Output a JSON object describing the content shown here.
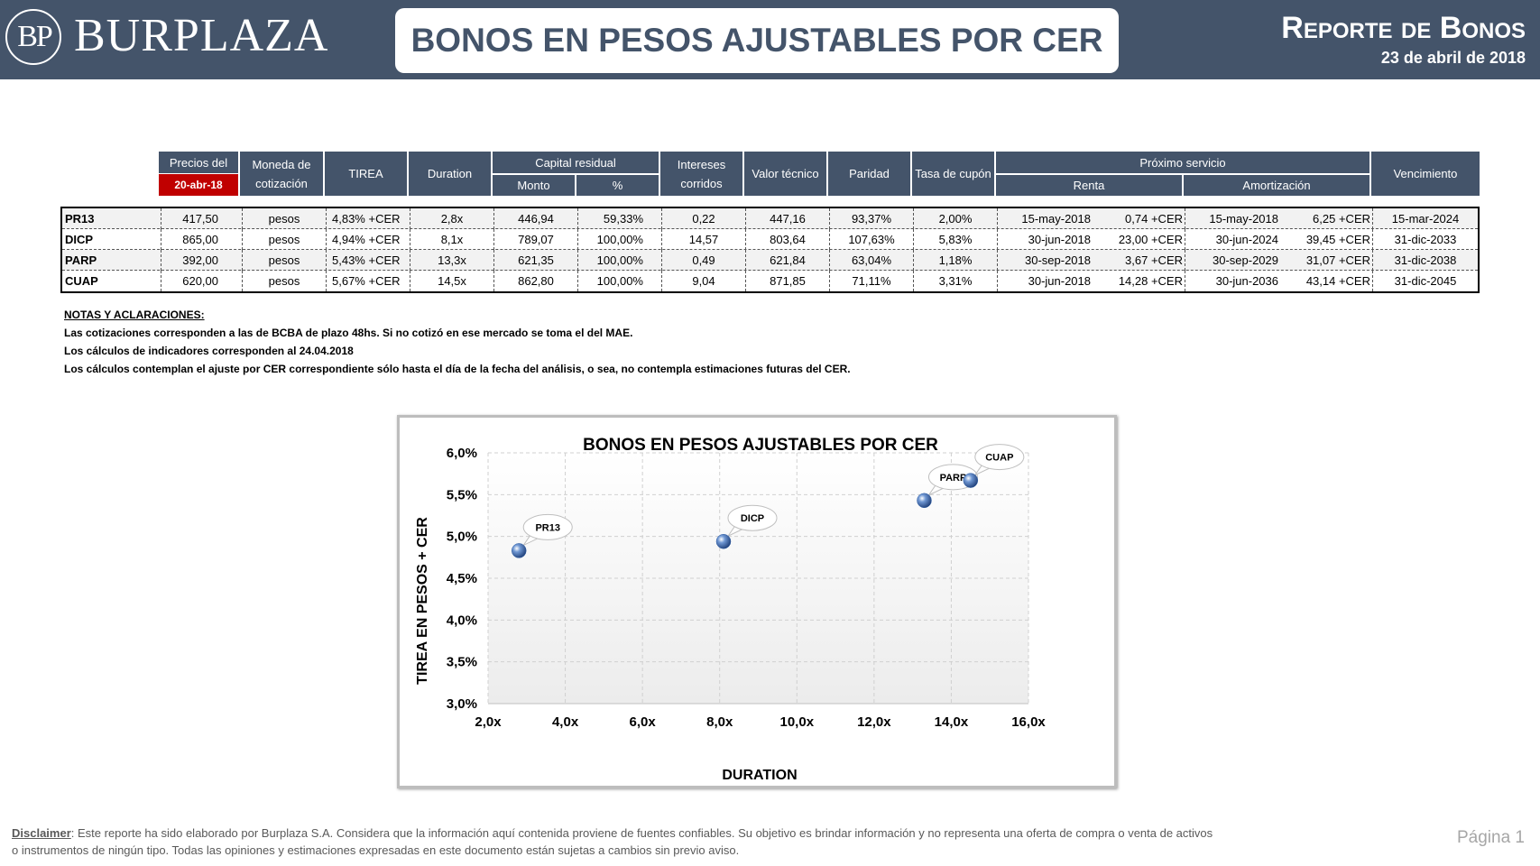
{
  "header": {
    "logo_initials": "BP",
    "logo_name": "BURPLAZA",
    "title": "BONOS EN PESOS AJUSTABLES POR CER",
    "report_title": "Reporte de Bonos",
    "report_date": "23 de abril de 2018"
  },
  "table": {
    "headers": {
      "precios": "Precios del",
      "precios_date": "20-abr-18",
      "moneda": "Moneda de cotización",
      "tirea": "TIREA",
      "duration": "Duration",
      "capital_residual": "Capital residual",
      "monto": "Monto",
      "pct": "%",
      "intereses": "Intereses corridos",
      "valor_tecnico": "Valor técnico",
      "paridad": "Paridad",
      "tasa": "Tasa de cupón",
      "proximo": "Próximo servicio",
      "renta": "Renta",
      "amortizacion": "Amortización",
      "vencimiento": "Vencimiento"
    },
    "rows": [
      [
        "PR13",
        "417,50",
        "pesos",
        "4,83% +CER",
        "2,8x",
        "446,94",
        "59,33%",
        "0,22",
        "447,16",
        "93,37%",
        "2,00%",
        "15-may-2018",
        "0,74 +CER",
        "15-may-2018",
        "6,25 +CER",
        "15-mar-2024"
      ],
      [
        "DICP",
        "865,00",
        "pesos",
        "4,94% +CER",
        "8,1x",
        "789,07",
        "100,00%",
        "14,57",
        "803,64",
        "107,63%",
        "5,83%",
        "30-jun-2018",
        "23,00 +CER",
        "30-jun-2024",
        "39,45 +CER",
        "31-dic-2033"
      ],
      [
        "PARP",
        "392,00",
        "pesos",
        "5,43% +CER",
        "13,3x",
        "621,35",
        "100,00%",
        "0,49",
        "621,84",
        "63,04%",
        "1,18%",
        "30-sep-2018",
        "3,67 +CER",
        "30-sep-2029",
        "31,07 +CER",
        "31-dic-2038"
      ],
      [
        "CUAP",
        "620,00",
        "pesos",
        "5,67% +CER",
        "14,5x",
        "862,80",
        "100,00%",
        "9,04",
        "871,85",
        "71,11%",
        "3,31%",
        "30-jun-2018",
        "14,28 +CER",
        "30-jun-2036",
        "43,14 +CER",
        "31-dic-2045"
      ]
    ]
  },
  "notes": {
    "heading": "NOTAS Y ACLARACIONES:",
    "lines": [
      "Las cotizaciones corresponden a las de BCBA de plazo 48hs. Si no cotizó en ese mercado se toma el del MAE.",
      "Los cálculos de indicadores corresponden al 24.04.2018",
      "Los cálculos contemplan el ajuste por CER correspondiente sólo hasta el día de la fecha del análisis, o sea, no contempla estimaciones futuras del CER."
    ]
  },
  "chart_data": {
    "type": "scatter",
    "title": "BONOS EN PESOS AJUSTABLES POR CER",
    "xlabel": "DURATION",
    "ylabel": "TIREA EN PESOS + CER",
    "xlim": [
      2.0,
      16.0
    ],
    "ylim": [
      3.0,
      6.0
    ],
    "x_ticks": [
      "2,0x",
      "4,0x",
      "6,0x",
      "8,0x",
      "10,0x",
      "12,0x",
      "14,0x",
      "16,0x"
    ],
    "y_ticks": [
      "3,0%",
      "3,5%",
      "4,0%",
      "4,5%",
      "5,0%",
      "5,5%",
      "6,0%"
    ],
    "grid": true,
    "points": [
      {
        "label": "PR13",
        "x": 2.8,
        "y": 4.83
      },
      {
        "label": "DICP",
        "x": 8.1,
        "y": 4.94
      },
      {
        "label": "PARP",
        "x": 13.3,
        "y": 5.43
      },
      {
        "label": "CUAP",
        "x": 14.5,
        "y": 5.67
      }
    ],
    "point_color": "#2e5fa8"
  },
  "disclaimer": {
    "label": "Disclaimer",
    "text": ": Este reporte ha sido elaborado por Burplaza S.A. Considera que la información aquí contenida proviene de fuentes confiables. Su objetivo es brindar información y no representa una oferta de compra o venta de activos o instrumentos de ningún tipo. Todas las opiniones y estimaciones expresadas en este documento están sujetas a cambios sin previo aviso."
  },
  "page": "Página 1"
}
